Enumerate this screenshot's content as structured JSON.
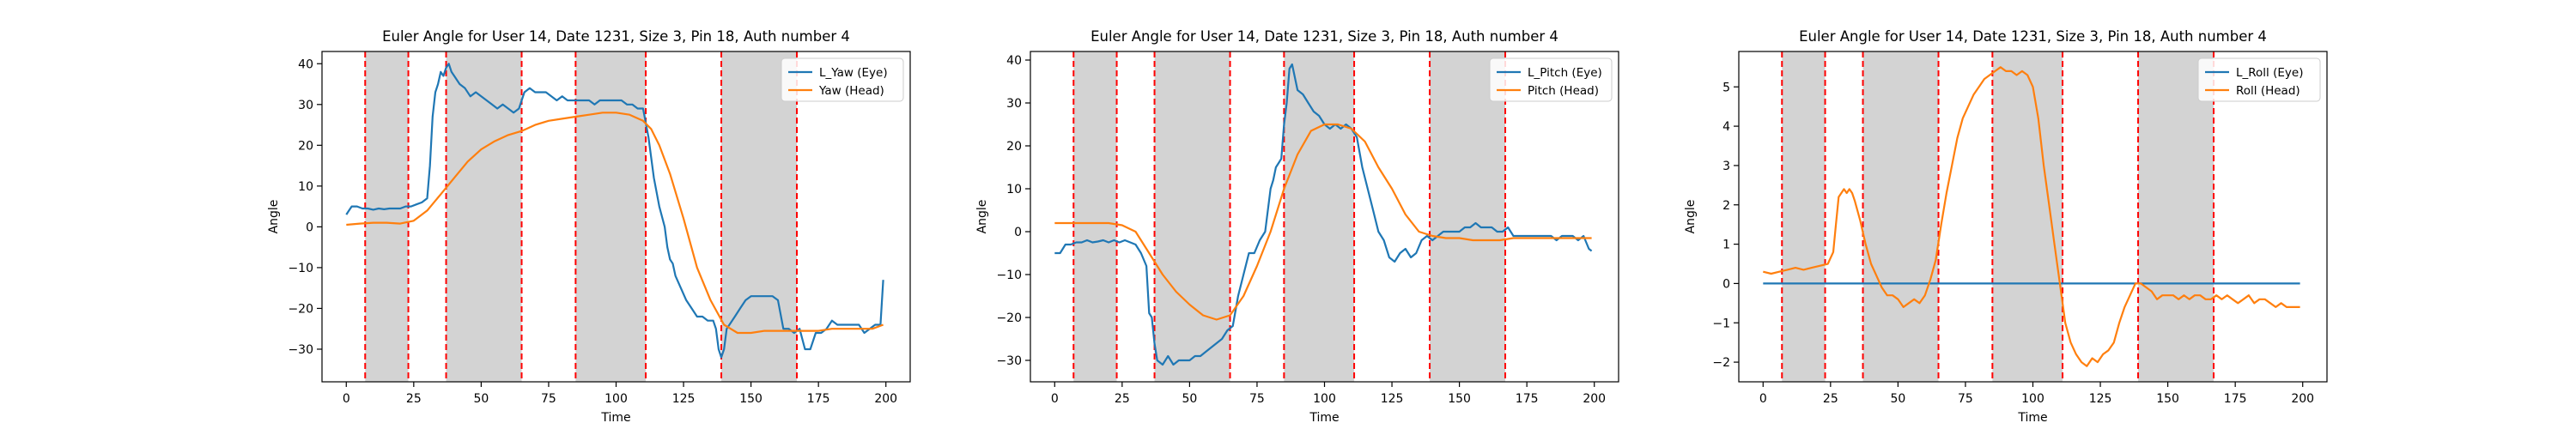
{
  "chart_data": [
    {
      "type": "line",
      "title": "Euler Angle for User 14, Date 1231, Size 3, Pin 18, Auth number 4",
      "xlabel": "Time",
      "ylabel": "Angle",
      "xlim": [
        -9,
        209
      ],
      "ylim": [
        -38,
        43
      ],
      "xticks": [
        0,
        25,
        50,
        75,
        100,
        125,
        150,
        175,
        200
      ],
      "yticks": [
        -30,
        -20,
        -10,
        0,
        10,
        20,
        30,
        40
      ],
      "legend_position": "top-right",
      "shaded_spans": [
        [
          7,
          23
        ],
        [
          37,
          65
        ],
        [
          85,
          111
        ],
        [
          139,
          167
        ]
      ],
      "vlines": [
        7,
        23,
        37,
        65,
        85,
        111,
        139,
        167
      ],
      "series": [
        {
          "name": "L_Yaw (Eye)",
          "color": "#1f77b4",
          "x": [
            0,
            1,
            2,
            4,
            6,
            8,
            10,
            12,
            14,
            16,
            18,
            20,
            22,
            24,
            26,
            28,
            30,
            31,
            32,
            33,
            34,
            35,
            36,
            37,
            38,
            39,
            40,
            42,
            44,
            46,
            48,
            50,
            52,
            54,
            56,
            58,
            60,
            62,
            64,
            66,
            68,
            70,
            72,
            74,
            76,
            78,
            80,
            82,
            84,
            86,
            88,
            90,
            92,
            94,
            96,
            98,
            100,
            102,
            104,
            106,
            108,
            110,
            112,
            114,
            116,
            118,
            119,
            120,
            121,
            122,
            124,
            126,
            128,
            130,
            132,
            134,
            136,
            137,
            138,
            139,
            140,
            141,
            142,
            144,
            146,
            148,
            150,
            152,
            154,
            156,
            158,
            160,
            162,
            164,
            166,
            168,
            170,
            172,
            174,
            176,
            178,
            180,
            182,
            184,
            186,
            188,
            190,
            192,
            194,
            196,
            198,
            199
          ],
          "values": [
            3,
            4,
            5,
            5,
            4.5,
            4.5,
            4.2,
            4.5,
            4.3,
            4.5,
            4.5,
            4.5,
            5,
            5,
            5.5,
            6,
            7,
            15,
            27,
            33,
            35,
            38,
            37,
            39,
            40,
            38,
            37,
            35,
            34,
            32,
            33,
            32,
            31,
            30,
            29,
            30,
            29,
            28,
            29,
            33,
            34,
            33,
            33,
            33,
            32,
            31,
            32,
            31,
            31,
            31,
            31,
            31,
            30,
            31,
            31,
            31,
            31,
            31,
            30,
            30,
            29,
            29,
            22,
            12,
            5,
            0,
            -5,
            -8,
            -9,
            -12,
            -15,
            -18,
            -20,
            -22,
            -22,
            -23,
            -23,
            -25,
            -30,
            -32,
            -30,
            -25,
            -24,
            -22,
            -20,
            -18,
            -17,
            -17,
            -17,
            -17,
            -17,
            -18,
            -25,
            -25,
            -26,
            -25,
            -30,
            -30,
            -26,
            -26,
            -25,
            -23,
            -24,
            -24,
            -24,
            -24,
            -24,
            -26,
            -25,
            -24,
            -24,
            -13
          ]
        },
        {
          "name": "Yaw (Head)",
          "color": "#ff7f0e",
          "x": [
            0,
            5,
            10,
            15,
            20,
            25,
            30,
            35,
            40,
            45,
            50,
            55,
            60,
            65,
            70,
            75,
            80,
            85,
            90,
            95,
            100,
            105,
            110,
            113,
            116,
            120,
            125,
            130,
            135,
            140,
            145,
            150,
            155,
            160,
            165,
            170,
            175,
            180,
            185,
            190,
            195,
            199
          ],
          "values": [
            0.5,
            0.8,
            1,
            1,
            0.8,
            1.5,
            4,
            8,
            12,
            16,
            19,
            21,
            22.5,
            23.5,
            25,
            26,
            26.5,
            27,
            27.5,
            28,
            28,
            27.5,
            26,
            24,
            20,
            13,
            2,
            -10,
            -18,
            -24,
            -26,
            -26,
            -25.5,
            -25.5,
            -25.5,
            -25.5,
            -25.5,
            -25,
            -25,
            -25,
            -25,
            -24
          ]
        }
      ]
    },
    {
      "type": "line",
      "title": "Euler Angle for User 14, Date 1231, Size 3, Pin 18, Auth number 4",
      "xlabel": "Time",
      "ylabel": "Angle",
      "xlim": [
        -9,
        209
      ],
      "ylim": [
        -35,
        42
      ],
      "xticks": [
        0,
        25,
        50,
        75,
        100,
        125,
        150,
        175,
        200
      ],
      "yticks": [
        -30,
        -20,
        -10,
        0,
        10,
        20,
        30,
        40
      ],
      "legend_position": "top-right",
      "shaded_spans": [
        [
          7,
          23
        ],
        [
          37,
          65
        ],
        [
          85,
          111
        ],
        [
          139,
          167
        ]
      ],
      "vlines": [
        7,
        23,
        37,
        65,
        85,
        111,
        139,
        167
      ],
      "series": [
        {
          "name": "L_Pitch (Eye)",
          "color": "#1f77b4",
          "x": [
            0,
            2,
            4,
            6,
            8,
            10,
            12,
            14,
            16,
            18,
            20,
            22,
            24,
            26,
            28,
            30,
            32,
            34,
            35,
            36,
            37,
            38,
            40,
            42,
            44,
            46,
            48,
            50,
            52,
            54,
            56,
            58,
            60,
            62,
            64,
            66,
            68,
            70,
            72,
            74,
            76,
            78,
            80,
            81,
            82,
            83,
            84,
            85,
            86,
            87,
            88,
            90,
            92,
            94,
            96,
            98,
            100,
            102,
            104,
            106,
            108,
            110,
            112,
            114,
            116,
            118,
            120,
            122,
            124,
            126,
            128,
            130,
            132,
            134,
            136,
            138,
            140,
            142,
            144,
            146,
            148,
            150,
            152,
            154,
            156,
            158,
            160,
            162,
            164,
            166,
            168,
            170,
            172,
            174,
            176,
            178,
            180,
            182,
            184,
            186,
            188,
            190,
            192,
            194,
            196,
            198,
            199
          ],
          "values": [
            -5,
            -5,
            -3,
            -3,
            -2.5,
            -2.5,
            -2,
            -2.5,
            -2.3,
            -2,
            -2.5,
            -2,
            -2.5,
            -2,
            -2.5,
            -3,
            -5,
            -8,
            -19,
            -20,
            -26,
            -30,
            -31,
            -29,
            -31,
            -30,
            -30,
            -30,
            -29,
            -29,
            -28,
            -27,
            -26,
            -25,
            -23,
            -22,
            -15,
            -10,
            -5,
            -5,
            -2,
            0,
            10,
            12,
            15,
            16,
            17,
            25,
            30,
            38,
            39,
            33,
            32,
            30,
            28,
            27,
            25,
            24,
            25,
            24,
            25,
            24,
            22,
            15,
            10,
            5,
            0,
            -2,
            -6,
            -7,
            -5,
            -4,
            -6,
            -5,
            -2,
            -1,
            -2,
            -1,
            0,
            0,
            0,
            0,
            1,
            1,
            2,
            1,
            1,
            1,
            0,
            0,
            1,
            -1,
            -1,
            -1,
            -1,
            -1,
            -1,
            -1,
            -1,
            -2,
            -1,
            -1,
            -1,
            -2,
            -1,
            -4,
            -4.5
          ]
        },
        {
          "name": "Pitch (Head)",
          "color": "#ff7f0e",
          "x": [
            0,
            5,
            10,
            15,
            20,
            25,
            30,
            35,
            40,
            45,
            50,
            55,
            60,
            65,
            70,
            75,
            80,
            85,
            90,
            95,
            100,
            105,
            110,
            115,
            120,
            125,
            130,
            135,
            140,
            145,
            150,
            155,
            160,
            165,
            170,
            175,
            180,
            185,
            190,
            195,
            199
          ],
          "values": [
            2,
            2,
            2,
            2,
            2,
            1.5,
            0,
            -5,
            -10,
            -14,
            -17,
            -19.5,
            -20.5,
            -19.5,
            -15,
            -8,
            0,
            10,
            18,
            23.5,
            25,
            25,
            24,
            21,
            15,
            10,
            4,
            0,
            -1,
            -1.5,
            -1.5,
            -2,
            -2,
            -2,
            -1.5,
            -1.5,
            -1.5,
            -1.5,
            -1.5,
            -1.5,
            -1.5
          ]
        }
      ]
    },
    {
      "type": "line",
      "title": "Euler Angle for User 14, Date 1231, Size 3, Pin 18, Auth number 4",
      "xlabel": "Time",
      "ylabel": "Angle",
      "xlim": [
        -9,
        209
      ],
      "ylim": [
        -2.5,
        5.9
      ],
      "xticks": [
        0,
        25,
        50,
        75,
        100,
        125,
        150,
        175,
        200
      ],
      "yticks": [
        -2,
        -1,
        0,
        1,
        2,
        3,
        4,
        5
      ],
      "legend_position": "top-right",
      "shaded_spans": [
        [
          7,
          23
        ],
        [
          37,
          65
        ],
        [
          85,
          111
        ],
        [
          139,
          167
        ]
      ],
      "vlines": [
        7,
        23,
        37,
        65,
        85,
        111,
        139,
        167
      ],
      "series": [
        {
          "name": "L_Roll (Eye)",
          "color": "#1f77b4",
          "x": [
            0,
            199
          ],
          "values": [
            0,
            0
          ]
        },
        {
          "name": "Roll (Head)",
          "color": "#ff7f0e",
          "x": [
            0,
            3,
            6,
            9,
            12,
            15,
            18,
            21,
            24,
            26,
            27,
            28,
            29,
            30,
            31,
            32,
            33,
            34,
            36,
            38,
            40,
            42,
            44,
            46,
            48,
            50,
            52,
            54,
            56,
            58,
            60,
            62,
            64,
            66,
            68,
            70,
            72,
            74,
            76,
            78,
            80,
            82,
            84,
            86,
            88,
            90,
            92,
            94,
            96,
            98,
            100,
            102,
            104,
            106,
            108,
            110,
            112,
            114,
            116,
            118,
            120,
            122,
            124,
            126,
            128,
            130,
            132,
            134,
            136,
            138,
            140,
            142,
            144,
            146,
            148,
            150,
            152,
            154,
            156,
            158,
            160,
            162,
            164,
            166,
            168,
            170,
            172,
            174,
            176,
            178,
            180,
            182,
            184,
            186,
            188,
            190,
            192,
            194,
            196,
            198,
            199
          ],
          "values": [
            0.3,
            0.25,
            0.3,
            0.35,
            0.4,
            0.35,
            0.4,
            0.45,
            0.5,
            0.8,
            1.5,
            2.2,
            2.3,
            2.4,
            2.3,
            2.4,
            2.3,
            2.1,
            1.6,
            1,
            0.5,
            0.2,
            -0.1,
            -0.3,
            -0.3,
            -0.4,
            -0.6,
            -0.5,
            -0.4,
            -0.5,
            -0.3,
            0.1,
            0.6,
            1.5,
            2.3,
            3,
            3.7,
            4.2,
            4.5,
            4.8,
            5,
            5.2,
            5.3,
            5.4,
            5.5,
            5.4,
            5.4,
            5.3,
            5.4,
            5.3,
            5,
            4.2,
            3,
            2,
            1,
            0,
            -1,
            -1.5,
            -1.8,
            -2,
            -2.1,
            -1.9,
            -2,
            -1.8,
            -1.7,
            -1.5,
            -1,
            -0.6,
            -0.3,
            0,
            0,
            -0.1,
            -0.2,
            -0.4,
            -0.3,
            -0.3,
            -0.3,
            -0.4,
            -0.3,
            -0.4,
            -0.3,
            -0.3,
            -0.4,
            -0.4,
            -0.3,
            -0.4,
            -0.3,
            -0.4,
            -0.5,
            -0.4,
            -0.3,
            -0.5,
            -0.4,
            -0.4,
            -0.5,
            -0.6,
            -0.5,
            -0.6,
            -0.6,
            -0.6,
            -0.6
          ]
        }
      ]
    }
  ]
}
